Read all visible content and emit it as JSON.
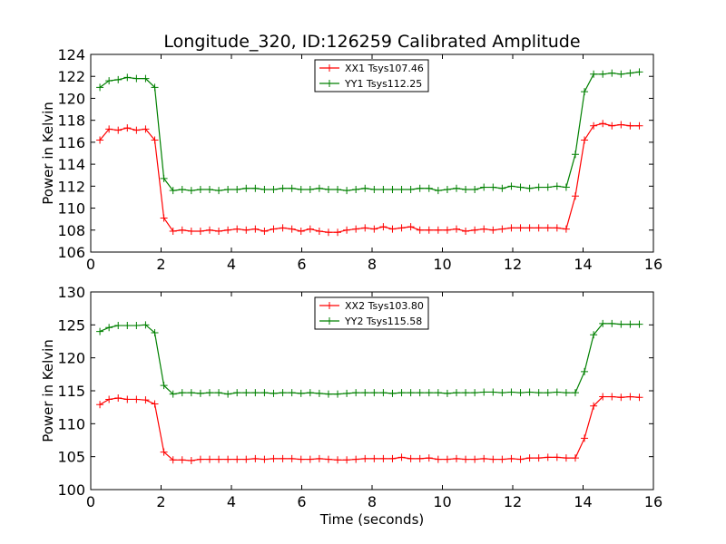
{
  "chart_data": {
    "title": "Longitude_320, ID:126259 Calibrated Amplitude",
    "colors": {
      "red": "#ff0000",
      "green": "#008000"
    },
    "x": [
      0.26,
      0.52,
      0.78,
      1.04,
      1.3,
      1.56,
      1.82,
      2.08,
      2.34,
      2.6,
      2.86,
      3.12,
      3.38,
      3.64,
      3.9,
      4.16,
      4.42,
      4.68,
      4.94,
      5.2,
      5.46,
      5.72,
      5.98,
      6.24,
      6.5,
      6.76,
      7.02,
      7.28,
      7.54,
      7.8,
      8.06,
      8.32,
      8.58,
      8.84,
      9.1,
      9.36,
      9.62,
      9.88,
      10.14,
      10.4,
      10.66,
      10.92,
      11.18,
      11.44,
      11.7,
      11.96,
      12.22,
      12.48,
      12.74,
      13.0,
      13.26,
      13.52,
      13.78,
      14.04,
      14.3,
      14.56,
      14.82,
      15.08,
      15.34,
      15.6
    ],
    "charts": [
      {
        "type": "line",
        "xlabel": "",
        "ylabel": "Power in Kelvin",
        "xlim": [
          0,
          16
        ],
        "ylim": [
          106,
          124
        ],
        "xticks": [
          0,
          2,
          4,
          6,
          8,
          10,
          12,
          14,
          16
        ],
        "yticks": [
          106,
          108,
          110,
          112,
          114,
          116,
          118,
          120,
          122,
          124
        ],
        "legend_position": "top-center",
        "series": [
          {
            "name": "XX1 Tsys107.46",
            "color": "red",
            "values": [
              116.2,
              117.2,
              117.1,
              117.3,
              117.1,
              117.2,
              116.2,
              109.1,
              107.9,
              108.0,
              107.9,
              107.9,
              108.0,
              107.9,
              108.0,
              108.1,
              108.0,
              108.1,
              107.9,
              108.1,
              108.2,
              108.1,
              107.9,
              108.1,
              107.9,
              107.8,
              107.8,
              108.0,
              108.1,
              108.2,
              108.1,
              108.3,
              108.1,
              108.2,
              108.3,
              108.0,
              108.0,
              108.0,
              108.0,
              108.1,
              107.9,
              108.0,
              108.1,
              108.0,
              108.1,
              108.2,
              108.2,
              108.2,
              108.2,
              108.2,
              108.2,
              108.1,
              111.1,
              116.2,
              117.5,
              117.7,
              117.5,
              117.6,
              117.5,
              117.5
            ]
          },
          {
            "name": "YY1 Tsys112.25",
            "color": "green",
            "values": [
              121.0,
              121.6,
              121.7,
              121.9,
              121.8,
              121.8,
              121.0,
              112.7,
              111.6,
              111.7,
              111.6,
              111.7,
              111.7,
              111.6,
              111.7,
              111.7,
              111.8,
              111.8,
              111.7,
              111.7,
              111.8,
              111.8,
              111.7,
              111.7,
              111.8,
              111.7,
              111.7,
              111.6,
              111.7,
              111.8,
              111.7,
              111.7,
              111.7,
              111.7,
              111.7,
              111.8,
              111.8,
              111.6,
              111.7,
              111.8,
              111.7,
              111.7,
              111.9,
              111.9,
              111.8,
              112.0,
              111.9,
              111.8,
              111.9,
              111.9,
              112.0,
              111.9,
              114.9,
              120.6,
              122.2,
              122.2,
              122.3,
              122.2,
              122.3,
              122.4
            ]
          }
        ]
      },
      {
        "type": "line",
        "xlabel": "Time (seconds)",
        "ylabel": "Power in Kelvin",
        "xlim": [
          0,
          16
        ],
        "ylim": [
          100,
          130
        ],
        "xticks": [
          0,
          2,
          4,
          6,
          8,
          10,
          12,
          14,
          16
        ],
        "yticks": [
          100,
          105,
          110,
          115,
          120,
          125,
          130
        ],
        "legend_position": "top-center",
        "series": [
          {
            "name": "XX2 Tsys103.80",
            "color": "red",
            "values": [
              112.9,
              113.7,
              113.9,
              113.7,
              113.7,
              113.6,
              113.0,
              105.7,
              104.5,
              104.5,
              104.4,
              104.6,
              104.6,
              104.6,
              104.6,
              104.6,
              104.6,
              104.7,
              104.6,
              104.7,
              104.7,
              104.7,
              104.6,
              104.6,
              104.7,
              104.6,
              104.5,
              104.5,
              104.6,
              104.7,
              104.7,
              104.7,
              104.7,
              104.9,
              104.7,
              104.7,
              104.8,
              104.6,
              104.6,
              104.7,
              104.6,
              104.6,
              104.7,
              104.6,
              104.6,
              104.7,
              104.6,
              104.8,
              104.8,
              104.9,
              104.9,
              104.8,
              104.8,
              107.8,
              112.7,
              114.1,
              114.1,
              114.0,
              114.1,
              114.0
            ]
          },
          {
            "name": "YY2 Tsys115.58",
            "color": "green",
            "values": [
              124.0,
              124.6,
              124.9,
              124.9,
              124.9,
              125.0,
              123.8,
              115.8,
              114.5,
              114.7,
              114.7,
              114.6,
              114.7,
              114.7,
              114.5,
              114.7,
              114.7,
              114.7,
              114.7,
              114.6,
              114.7,
              114.7,
              114.6,
              114.7,
              114.6,
              114.5,
              114.5,
              114.6,
              114.7,
              114.7,
              114.7,
              114.7,
              114.6,
              114.7,
              114.7,
              114.7,
              114.7,
              114.7,
              114.6,
              114.7,
              114.7,
              114.7,
              114.8,
              114.8,
              114.7,
              114.8,
              114.7,
              114.8,
              114.7,
              114.7,
              114.8,
              114.7,
              114.7,
              117.9,
              123.5,
              125.2,
              125.2,
              125.1,
              125.1,
              125.1
            ]
          }
        ]
      }
    ]
  }
}
